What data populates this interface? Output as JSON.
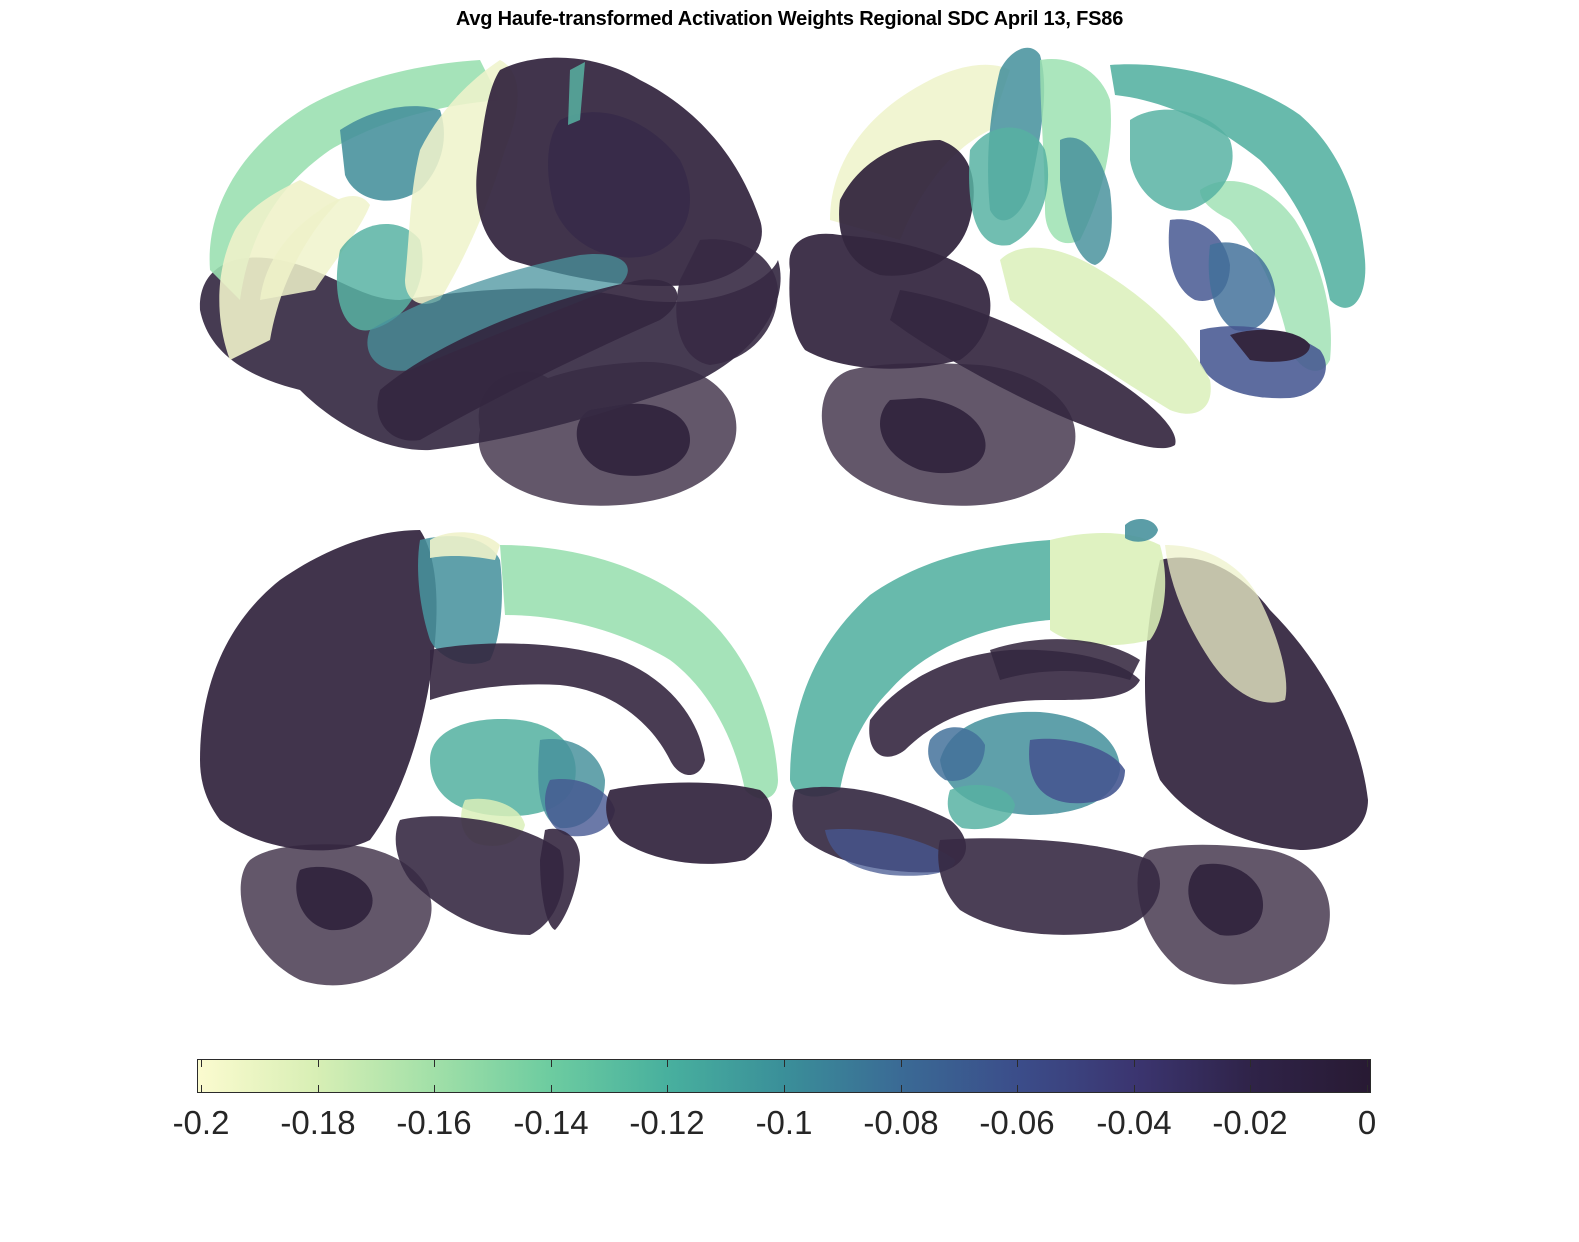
{
  "figure": {
    "title": "Avg Haufe-transformed Activation Weights Regional SDC April 13, FS86"
  },
  "colorbar": {
    "min": -0.2,
    "max": 0,
    "colormap_stops": [
      "#fbfbcf",
      "#d8efb5",
      "#a2e0a8",
      "#6dcca0",
      "#48b09e",
      "#3a8f99",
      "#3a6a95",
      "#3b4d8a",
      "#3b3570",
      "#2f2348",
      "#281a33"
    ],
    "ticks": [
      {
        "value": -0.2,
        "label": "-0.2"
      },
      {
        "value": -0.18,
        "label": "-0.18"
      },
      {
        "value": -0.16,
        "label": "-0.16"
      },
      {
        "value": -0.14,
        "label": "-0.14"
      },
      {
        "value": -0.12,
        "label": "-0.12"
      },
      {
        "value": -0.1,
        "label": "-0.1"
      },
      {
        "value": -0.08,
        "label": "-0.08"
      },
      {
        "value": -0.06,
        "label": "-0.06"
      },
      {
        "value": -0.04,
        "label": "-0.04"
      },
      {
        "value": -0.02,
        "label": "-0.02"
      },
      {
        "value": 0,
        "label": "0"
      }
    ]
  },
  "views": [
    {
      "name": "left-lateral"
    },
    {
      "name": "right-lateral"
    },
    {
      "name": "left-medial"
    },
    {
      "name": "right-medial"
    }
  ],
  "palette": {
    "dark": "#2a1c36",
    "dark_translucent": "#3d2f47",
    "cream": "#eef2c8",
    "mint": "#96dfad",
    "teal": "#4fae9e",
    "blue_teal": "#3f8d98",
    "indigo": "#3c4f8c"
  }
}
